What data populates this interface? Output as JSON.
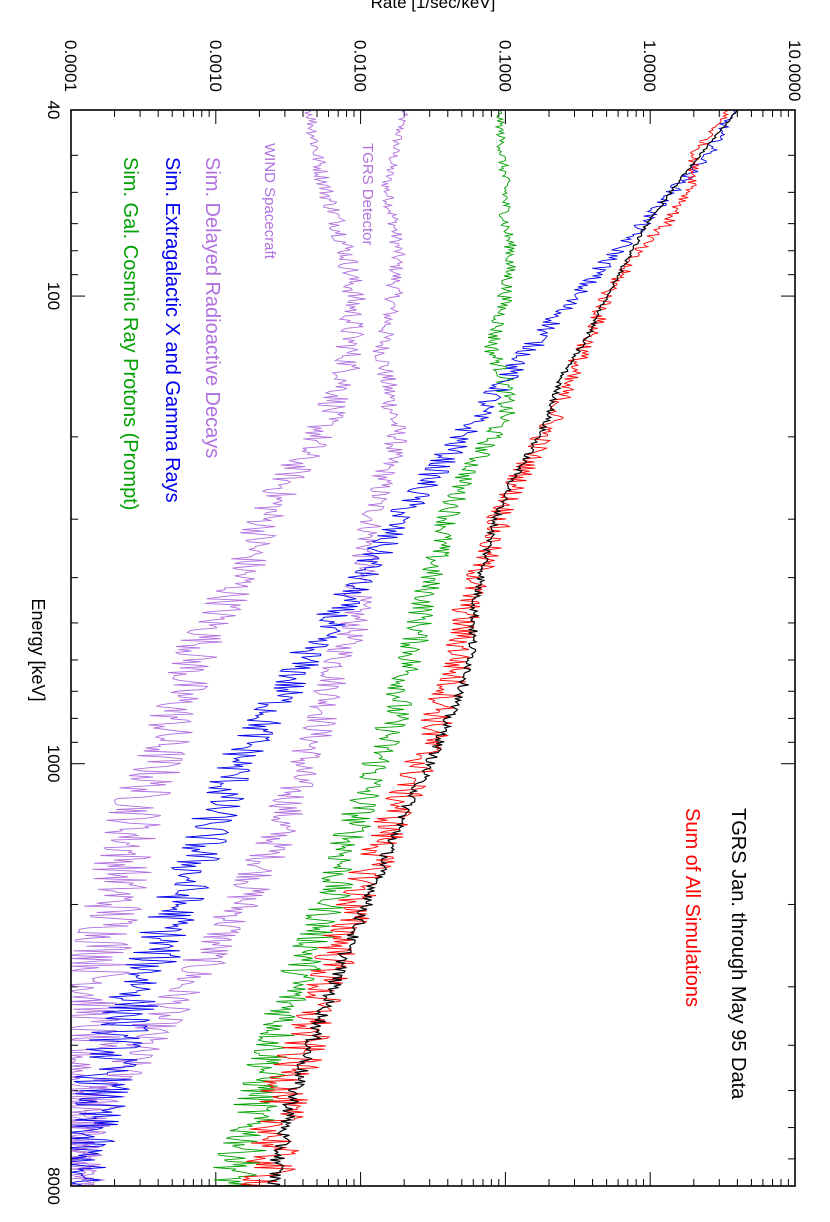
{
  "chart_data": {
    "type": "line",
    "orientation": "rotated-90-clockwise",
    "xlabel": "Energy [keV]",
    "ylabel": "Rate [1/sec/keV]",
    "x_scale": "log",
    "y_scale": "log",
    "xlim": [
      40,
      8000
    ],
    "ylim": [
      0.0001,
      10
    ],
    "x_tick_labels": [
      {
        "value": 40,
        "label": "40"
      },
      {
        "value": 100,
        "label": "100"
      },
      {
        "value": 1000,
        "label": "1000"
      },
      {
        "value": 8000,
        "label": "8000"
      }
    ],
    "y_tick_labels": [
      {
        "value": 0.0001,
        "label": "0.0001"
      },
      {
        "value": 0.001,
        "label": "0.0010"
      },
      {
        "value": 0.01,
        "label": "0.0100"
      },
      {
        "value": 0.1,
        "label": "0.1000"
      },
      {
        "value": 1,
        "label": "1.0000"
      },
      {
        "value": 10,
        "label": "10.0000"
      }
    ],
    "legend_placement": "left-in-plot",
    "series": [
      {
        "name": "TGRS Jan. through May 95 Data",
        "color": "#000000",
        "x": [
          40,
          50,
          58,
          70,
          80,
          100,
          120,
          150,
          180,
          200,
          250,
          300,
          350,
          400,
          450,
          511,
          600,
          700,
          800,
          900,
          1000,
          1200,
          1500,
          2000,
          2500,
          3000,
          4000,
          5000,
          6000,
          7000,
          8000
        ],
        "y": [
          4,
          2.2,
          1.5,
          0.95,
          0.75,
          0.5,
          0.38,
          0.24,
          0.2,
          0.17,
          0.11,
          0.085,
          0.075,
          0.068,
          0.062,
          0.06,
          0.058,
          0.05,
          0.04,
          0.035,
          0.03,
          0.022,
          0.016,
          0.011,
          0.008,
          0.0065,
          0.0045,
          0.0035,
          0.003,
          0.0027,
          0.0025
        ]
      },
      {
        "name": "Sum of All Simulations",
        "color": "#ff0000",
        "x": [
          40,
          50,
          58,
          70,
          80,
          100,
          120,
          150,
          180,
          200,
          250,
          300,
          350,
          400,
          450,
          511,
          600,
          700,
          800,
          900,
          1000,
          1200,
          1500,
          2000,
          2500,
          3000,
          4000,
          5000,
          6000,
          7000,
          8000
        ],
        "y": [
          3.5,
          2,
          2,
          1.3,
          0.8,
          0.5,
          0.4,
          0.27,
          0.22,
          0.18,
          0.12,
          0.09,
          0.075,
          0.064,
          0.055,
          0.05,
          0.047,
          0.04,
          0.034,
          0.03,
          0.026,
          0.019,
          0.014,
          0.009,
          0.007,
          0.0055,
          0.004,
          0.003,
          0.0026,
          0.0024,
          0.0022
        ]
      },
      {
        "name": "Sim. Extragalactic X and Gamma Rays",
        "color": "#0000ee",
        "x": [
          40,
          50,
          60,
          80,
          100,
          150,
          200,
          300,
          400,
          500,
          600,
          700,
          800,
          1000,
          1500,
          2000,
          3000,
          4000,
          5000,
          6000,
          7000,
          8000
        ],
        "y": [
          3.7,
          2.5,
          1.4,
          0.6,
          0.3,
          0.1,
          0.05,
          0.018,
          0.01,
          0.006,
          0.004,
          0.003,
          0.0022,
          0.0014,
          0.0008,
          0.00055,
          0.0003,
          0.0002,
          0.00016,
          0.00013,
          0.00011,
          0.0001
        ]
      },
      {
        "name": "Sim. Gal. Cosmic Ray Protons (Prompt)",
        "color": "#00a000",
        "x": [
          40,
          50,
          58,
          70,
          80,
          100,
          130,
          150,
          180,
          200,
          250,
          300,
          400,
          511,
          600,
          800,
          1000,
          1500,
          2000,
          3000,
          4000,
          5000,
          6000,
          8000
        ],
        "y": [
          0.09,
          0.095,
          0.1,
          0.1,
          0.11,
          0.1,
          0.08,
          0.1,
          0.1,
          0.08,
          0.05,
          0.04,
          0.03,
          0.025,
          0.022,
          0.017,
          0.013,
          0.008,
          0.006,
          0.0035,
          0.0025,
          0.002,
          0.0017,
          0.0013
        ]
      },
      {
        "name": "Sim. Delayed Radioactive Decays",
        "color": "#b070e0",
        "label": "TGRS Detector",
        "x": [
          40,
          50,
          58,
          70,
          80,
          100,
          130,
          150,
          200,
          250,
          300,
          400,
          511,
          600,
          800,
          1000,
          1500,
          2000,
          2500,
          3000,
          4000,
          5000,
          6000,
          8000
        ],
        "y": [
          0.02,
          0.017,
          0.015,
          0.017,
          0.018,
          0.017,
          0.014,
          0.015,
          0.018,
          0.014,
          0.012,
          0.01,
          0.009,
          0.007,
          0.0055,
          0.004,
          0.0025,
          0.0015,
          0.00095,
          0.0006,
          0.0003,
          0.00018,
          0.00012,
          0.0001
        ]
      },
      {
        "name": "Sim. Delayed Radioactive Decays",
        "color": "#b070e0",
        "label": "WIND Spacecraft",
        "x": [
          40,
          50,
          60,
          70,
          80,
          100,
          150,
          200,
          250,
          300,
          400,
          450,
          511,
          600,
          800,
          1000,
          1200,
          1500,
          2000,
          3000,
          4000,
          5000,
          8000
        ],
        "y": [
          0.0045,
          0.005,
          0.0058,
          0.007,
          0.008,
          0.009,
          0.008,
          0.005,
          0.003,
          0.0022,
          0.0015,
          0.0012,
          0.0009,
          0.0007,
          0.0005,
          0.0004,
          0.0003,
          0.00025,
          0.0002,
          0.00015,
          0.00012,
          0.0001,
          0.0001
        ]
      }
    ],
    "annotations": [
      {
        "text": "TGRS Jan. through May 95 Data",
        "color": "#000000"
      },
      {
        "text": "Sum of All Simulations",
        "color": "#ff0000"
      },
      {
        "text": "Sim. Delayed Radioactive Decays",
        "color": "#b070e0"
      },
      {
        "text": "Sim. Extragalactic X and Gamma Rays",
        "color": "#0000ee"
      },
      {
        "text": "Sim. Gal. Cosmic Ray Protons (Prompt)",
        "color": "#00a000"
      },
      {
        "text": "TGRS Detector",
        "color": "#b070e0"
      },
      {
        "text": "WIND Spacecraft",
        "color": "#b070e0"
      }
    ]
  }
}
